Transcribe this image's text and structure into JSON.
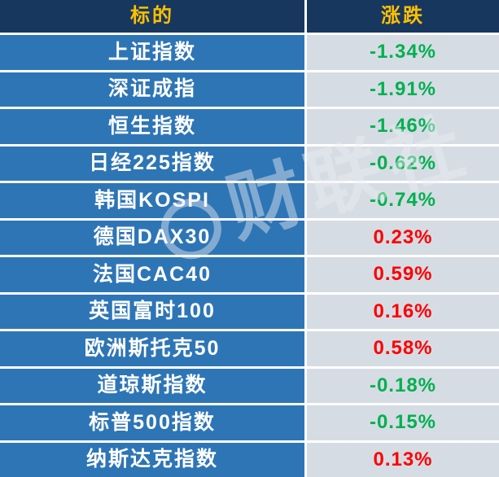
{
  "watermark": "财联社",
  "colors": {
    "header_bg": "#17375e",
    "header_text": "#ffc000",
    "name_cell_bg": "#2e75b6",
    "value_cell_bg": "#d6dce4",
    "up_color": "#ff0000",
    "down_color": "#00b050"
  },
  "chart_data": {
    "type": "table",
    "title": "",
    "headers": [
      "标的",
      "涨跌"
    ],
    "legend": "red = up, green = down (Chinese market convention)",
    "rows": [
      {
        "name": "上证指数",
        "change": "-1.34%",
        "value": -1.34,
        "direction": "down"
      },
      {
        "name": "深证成指",
        "change": "-1.91%",
        "value": -1.91,
        "direction": "down"
      },
      {
        "name": "恒生指数",
        "change": "-1.46%",
        "value": -1.46,
        "direction": "down"
      },
      {
        "name": "日经225指数",
        "change": "-0.62%",
        "value": -0.62,
        "direction": "down"
      },
      {
        "name": "韩国KOSPI",
        "change": "-0.74%",
        "value": -0.74,
        "direction": "down"
      },
      {
        "name": "德国DAX30",
        "change": "0.23%",
        "value": 0.23,
        "direction": "up"
      },
      {
        "name": "法国CAC40",
        "change": "0.59%",
        "value": 0.59,
        "direction": "up"
      },
      {
        "name": "英国富时100",
        "change": "0.16%",
        "value": 0.16,
        "direction": "up"
      },
      {
        "name": "欧洲斯托克50",
        "change": "0.58%",
        "value": 0.58,
        "direction": "up"
      },
      {
        "name": "道琼斯指数",
        "change": "-0.18%",
        "value": -0.18,
        "direction": "down"
      },
      {
        "name": "标普500指数",
        "change": "-0.15%",
        "value": -0.15,
        "direction": "down"
      },
      {
        "name": "纳斯达克指数",
        "change": "0.13%",
        "value": 0.13,
        "direction": "up"
      }
    ]
  }
}
